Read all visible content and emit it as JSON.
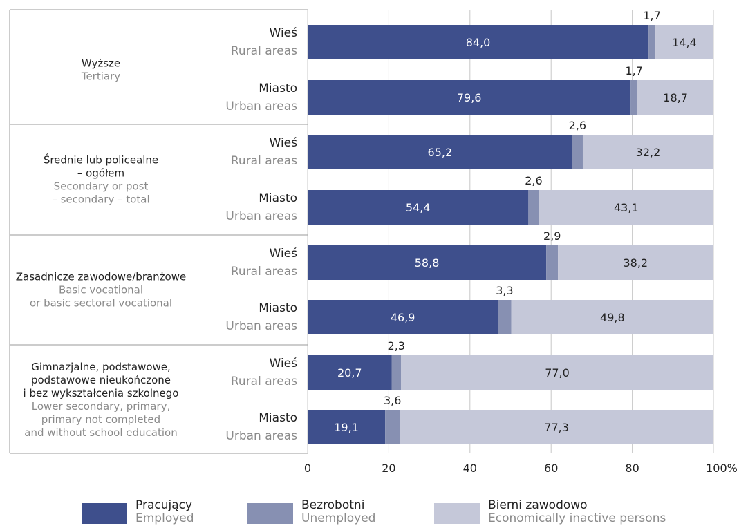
{
  "chart_data": {
    "type": "bar",
    "orientation": "horizontal",
    "stacked": true,
    "groups": [
      {
        "label_pl": [
          "Wyższe"
        ],
        "label_en": [
          "Tertiary"
        ],
        "rows": [
          {
            "label_pl": "Wieś",
            "label_en": "Rural areas",
            "values": [
              84.0,
              1.7,
              14.4
            ],
            "labels": [
              "84,0",
              "1,7",
              "14,4"
            ]
          },
          {
            "label_pl": "Miasto",
            "label_en": "Urban areas",
            "values": [
              79.6,
              1.7,
              18.7
            ],
            "labels": [
              "79,6",
              "1,7",
              "18,7"
            ]
          }
        ]
      },
      {
        "label_pl": [
          "Średnie lub policealne",
          "– ogółem"
        ],
        "label_en": [
          "Secondary or post",
          "– secondary – total"
        ],
        "rows": [
          {
            "label_pl": "Wieś",
            "label_en": "Rural areas",
            "values": [
              65.2,
              2.6,
              32.2
            ],
            "labels": [
              "65,2",
              "2,6",
              "32,2"
            ]
          },
          {
            "label_pl": "Miasto",
            "label_en": "Urban areas",
            "values": [
              54.4,
              2.6,
              43.1
            ],
            "labels": [
              "54,4",
              "2,6",
              "43,1"
            ]
          }
        ]
      },
      {
        "label_pl": [
          "Zasadnicze zawodowe/branżowe"
        ],
        "label_en": [
          "Basic vocational",
          "or basic sectoral vocational"
        ],
        "rows": [
          {
            "label_pl": "Wieś",
            "label_en": "Rural areas",
            "values": [
              58.8,
              2.9,
              38.2
            ],
            "labels": [
              "58,8",
              "2,9",
              "38,2"
            ]
          },
          {
            "label_pl": "Miasto",
            "label_en": "Urban areas",
            "values": [
              46.9,
              3.3,
              49.8
            ],
            "labels": [
              "46,9",
              "3,3",
              "49,8"
            ]
          }
        ]
      },
      {
        "label_pl": [
          "Gimnazjalne, podstawowe,",
          "podstawowe nieukończone",
          "i bez wykształcenia szkolnego"
        ],
        "label_en": [
          "Lower secondary, primary,",
          "primary not completed",
          "and without school education"
        ],
        "rows": [
          {
            "label_pl": "Wieś",
            "label_en": "Rural areas",
            "values": [
              20.7,
              2.3,
              77.0
            ],
            "labels": [
              "20,7",
              "2,3",
              "77,0"
            ]
          },
          {
            "label_pl": "Miasto",
            "label_en": "Urban areas",
            "values": [
              19.1,
              3.6,
              77.3
            ],
            "labels": [
              "19,1",
              "3,6",
              "77,3"
            ]
          }
        ]
      }
    ],
    "series": [
      {
        "name_pl": "Pracujący",
        "name_en": "Employed",
        "color": "#3e4f8c"
      },
      {
        "name_pl": "Bezrobotni",
        "name_en": "Unemployed",
        "color": "#8790b2"
      },
      {
        "name_pl": "Bierni zawodowo",
        "name_en": "Economically inactive persons",
        "color": "#c5c8d9"
      }
    ],
    "x_ticks": [
      "0",
      "20",
      "40",
      "60",
      "80",
      "100%"
    ],
    "xlim": [
      0,
      100
    ],
    "legend_position": "bottom"
  }
}
